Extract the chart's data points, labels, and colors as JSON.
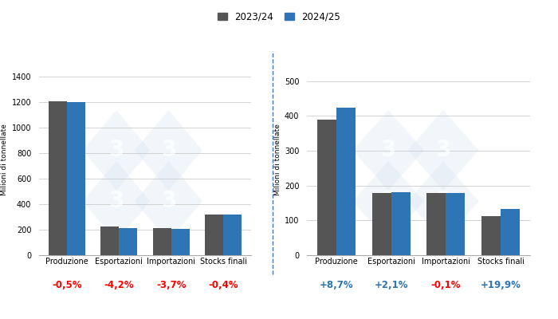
{
  "legend_labels": [
    "2023/24",
    "2024/25"
  ],
  "legend_colors": [
    "#555555",
    "#2e75b6"
  ],
  "color_2023": "#555555",
  "color_2024": "#2e75b6",
  "background_color": "#ffffff",
  "separator_color": "#4472c4",
  "watermark_color": "#c8daea",
  "mais_categories": [
    "Produzione",
    "Esportazioni",
    "Importazioni",
    "Stocks finali"
  ],
  "mais_2023": [
    1209,
    222,
    211,
    318
  ],
  "mais_2024": [
    1203,
    213,
    204,
    317
  ],
  "mais_pct": [
    "-0,5%",
    "-4,2%",
    "-3,7%",
    "-0,4%"
  ],
  "mais_pct_colors": [
    "#ff0000",
    "#ff0000",
    "#ff0000",
    "#ff0000"
  ],
  "mais_ylabel": "Milioni di tonnellate",
  "mais_ylim": [
    0,
    1500
  ],
  "mais_yticks": [
    0,
    200,
    400,
    600,
    800,
    1000,
    1200,
    1400
  ],
  "soia_categories": [
    "Produzione",
    "Esportazioni",
    "Importazioni",
    "Stocks finali"
  ],
  "soia_2023": [
    390,
    178,
    178,
    112
  ],
  "soia_2024": [
    424,
    182,
    178,
    134
  ],
  "soia_pct": [
    "+8,7%",
    "+2,1%",
    "-0,1%",
    "+19,9%"
  ],
  "soia_pct_colors": [
    "#2e75b6",
    "#2e75b6",
    "#ff0000",
    "#2e75b6"
  ],
  "soia_ylabel": "Milioni di tonnellate",
  "soia_ylim": [
    0,
    550
  ],
  "soia_yticks": [
    0,
    100,
    200,
    300,
    400,
    500
  ]
}
